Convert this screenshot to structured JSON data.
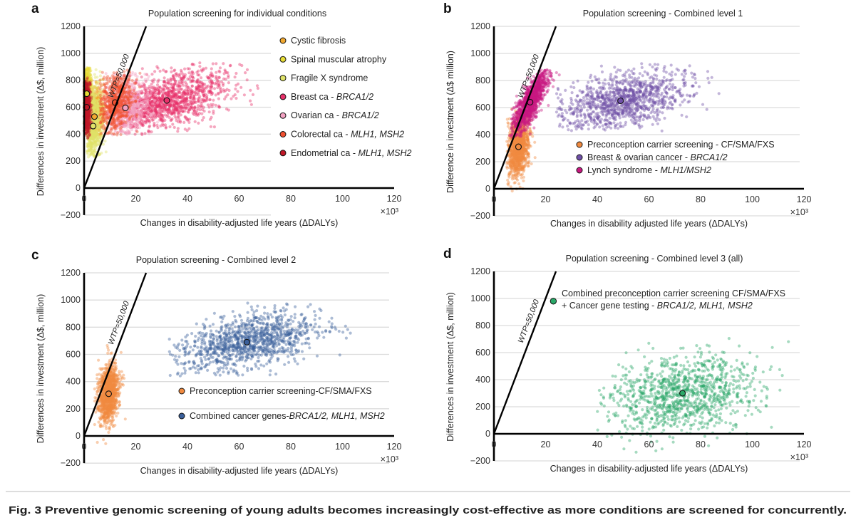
{
  "caption": "Fig. 3 Preventive genomic screening of young adults becomes increasingly cost-effective as more conditions are screened for concurrently.",
  "chart_data": [
    {
      "type": "scatter",
      "panel_label": "a",
      "title": "Population screening for individual conditions",
      "xlabel": "Changes in disability-adjusted life years (ΔDALYs)",
      "ylabel": "Differences in investment (Δ$, million)",
      "x_multiplier": "×10³",
      "xlim": [
        0,
        120
      ],
      "ylim": [
        -200,
        1200
      ],
      "x_ticks": [
        "0",
        "20",
        "40",
        "60",
        "80",
        "100",
        "120"
      ],
      "y_ticks": [
        "−200",
        "0",
        "200",
        "400",
        "600",
        "800",
        "1000",
        "1200"
      ],
      "grid": "horizontal",
      "legend_placement": "top-right",
      "reference_line": {
        "label": "WTP=50,000",
        "slope": 50
      },
      "series": [
        {
          "name_parts": [
            {
              "t": "Cystic fibrosis"
            }
          ],
          "color": "#f0a830",
          "centroid": [
            4,
            530
          ],
          "sd": [
            1.6,
            100
          ],
          "rho": 0.1,
          "x_range": [
            1,
            8
          ],
          "y_range": [
            380,
            860
          ]
        },
        {
          "name_parts": [
            {
              "t": "Spinal muscular atrophy"
            }
          ],
          "color": "#e6dc36",
          "centroid": [
            1,
            700
          ],
          "sd": [
            1.0,
            110
          ],
          "rho": 0,
          "x_range": [
            0,
            4
          ],
          "y_range": [
            400,
            900
          ]
        },
        {
          "name_parts": [
            {
              "t": "Fragile X syndrome"
            }
          ],
          "color": "#dfe36a",
          "centroid": [
            3.5,
            460
          ],
          "sd": [
            2.0,
            150
          ],
          "rho": 0.3,
          "x_range": [
            1,
            9
          ],
          "y_range": [
            230,
            880
          ]
        },
        {
          "name_parts": [
            {
              "t": "Breast ca - "
            },
            {
              "t": "BRCA1/2",
              "i": true
            }
          ],
          "color": "#e8306a",
          "centroid": [
            32,
            650
          ],
          "sd": [
            12,
            110
          ],
          "rho": 0.4,
          "x_range": [
            14,
            72
          ],
          "y_range": [
            390,
            930
          ]
        },
        {
          "name_parts": [
            {
              "t": "Ovarian ca - "
            },
            {
              "t": "BRCA1/2",
              "i": true
            }
          ],
          "color": "#f2a2c2",
          "centroid": [
            16,
            595
          ],
          "sd": [
            5,
            110
          ],
          "rho": 0.2,
          "x_range": [
            8,
            32
          ],
          "y_range": [
            390,
            860
          ]
        },
        {
          "name_parts": [
            {
              "t": "Colorectal ca - "
            },
            {
              "t": "MLH1, MSH2",
              "i": true
            }
          ],
          "color": "#f05030",
          "centroid": [
            12,
            635
          ],
          "sd": [
            3.5,
            120
          ],
          "rho": 0.2,
          "x_range": [
            6,
            22
          ],
          "y_range": [
            390,
            880
          ]
        },
        {
          "name_parts": [
            {
              "t": "Endometrial ca - "
            },
            {
              "t": "MLH1, MSH2",
              "i": true
            }
          ],
          "color": "#c01828",
          "centroid": [
            1,
            600
          ],
          "sd": [
            0.8,
            110
          ],
          "rho": 0,
          "x_range": [
            0,
            3.5
          ],
          "y_range": [
            370,
            820
          ]
        }
      ]
    },
    {
      "type": "scatter",
      "panel_label": "b",
      "title": "Population screening - Combined level 1",
      "xlabel": "Changes in disability adjusted life years (ΔDALYs)",
      "ylabel": "Difference in investment (Δ$ million)",
      "x_multiplier": "×10³",
      "xlim": [
        0,
        120
      ],
      "ylim": [
        -200,
        1200
      ],
      "x_ticks": [
        "0",
        "20",
        "40",
        "60",
        "80",
        "100",
        "120"
      ],
      "y_ticks": [
        "−200",
        "0",
        "200",
        "400",
        "600",
        "800",
        "1000",
        "1200"
      ],
      "grid": "horizontal",
      "legend_placement": "bottom-right",
      "reference_line": {
        "label": "WTP=50,000",
        "slope": 50
      },
      "series": [
        {
          "name_parts": [
            {
              "t": "Preconception carrier screening - CF/SMA/FXS"
            }
          ],
          "color": "#f08a40",
          "centroid": [
            9.5,
            310
          ],
          "sd": [
            2,
            110
          ],
          "rho": 0.2,
          "x_range": [
            5,
            19
          ],
          "y_range": [
            -60,
            620
          ]
        },
        {
          "name_parts": [
            {
              "t": "Breast & ovarian cancer - "
            },
            {
              "t": "BRCA1/2",
              "i": true
            }
          ],
          "color": "#7050a8",
          "centroid": [
            49,
            650
          ],
          "sd": [
            13,
            110
          ],
          "rho": 0.45,
          "x_range": [
            24,
            100
          ],
          "y_range": [
            420,
            930
          ]
        },
        {
          "name_parts": [
            {
              "t": "Lynch syndrome - "
            },
            {
              "t": "MLH1/MSH2",
              "i": true
            }
          ],
          "color": "#c81880",
          "centroid": [
            14,
            640
          ],
          "sd": [
            3.5,
            120
          ],
          "rho": 0.8,
          "x_range": [
            6,
            26
          ],
          "y_range": [
            380,
            880
          ]
        }
      ]
    },
    {
      "type": "scatter",
      "panel_label": "c",
      "title": "Population screening - Combined level 2",
      "xlabel": "Changes in disability-adjusted life years (ΔDALYs)",
      "ylabel": "Differences in investment (Δ$, million)",
      "x_multiplier": "×10³",
      "xlim": [
        0,
        120
      ],
      "ylim": [
        -200,
        1200
      ],
      "x_ticks": [
        "0",
        "20",
        "40",
        "60",
        "80",
        "100",
        "120"
      ],
      "y_ticks": [
        "−200",
        "0",
        "200",
        "400",
        "600",
        "800",
        "1000",
        "1200"
      ],
      "grid": "horizontal",
      "legend_placement": "bottom-right",
      "reference_line": {
        "label": "WTP=50,000",
        "slope": 50
      },
      "series": [
        {
          "name_parts": [
            {
              "t": "Preconception carrier screening-CF/SMA/FXS"
            }
          ],
          "color": "#f08a40",
          "centroid": [
            9.5,
            310
          ],
          "sd": [
            2,
            110
          ],
          "rho": 0.2,
          "x_range": [
            4,
            20
          ],
          "y_range": [
            -60,
            680
          ]
        },
        {
          "name_parts": [
            {
              "t": "Combined cancer genes-"
            },
            {
              "t": "BRCA1/2, MLH1, MSH2",
              "i": true
            }
          ],
          "color": "#3a5f9a",
          "centroid": [
            63,
            690
          ],
          "sd": [
            14,
            110
          ],
          "rho": 0.45,
          "x_range": [
            33,
            110
          ],
          "y_range": [
            440,
            980
          ]
        }
      ]
    },
    {
      "type": "scatter",
      "panel_label": "d",
      "title": "Population screening - Combined level 3 (all)",
      "xlabel": "Changes in disability-adjusted life years (ΔDALYs)",
      "ylabel": "Differences in investment (Δ$, million)",
      "x_multiplier": "×10³",
      "xlim": [
        0,
        120
      ],
      "ylim": [
        -200,
        1200
      ],
      "x_ticks": [
        "0",
        "20",
        "40",
        "60",
        "80",
        "100",
        "120"
      ],
      "y_ticks": [
        "−200",
        "0",
        "200",
        "400",
        "600",
        "800",
        "1000",
        "1200"
      ],
      "grid": "horizontal",
      "legend_placement": "top",
      "reference_line": {
        "label": "WTP=50,000",
        "slope": 50
      },
      "series": [
        {
          "name_lines": [
            [
              {
                "t": "Combined preconception carrier screening CF/SMA/FXS"
              }
            ],
            [
              {
                "t": "+ Cancer gene testing - "
              },
              {
                "t": "BRCA1/2, MLH1, MSH2",
                "i": true
              }
            ]
          ],
          "color": "#2aa868",
          "centroid": [
            73,
            300
          ],
          "sd": [
            14,
            150
          ],
          "rho": 0.25,
          "x_range": [
            40,
            120
          ],
          "y_range": [
            -200,
            720
          ]
        }
      ]
    }
  ]
}
